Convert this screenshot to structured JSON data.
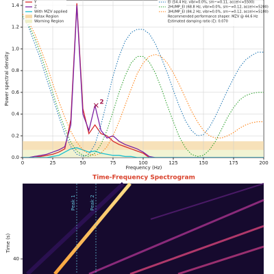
{
  "chart_data": [
    {
      "type": "line",
      "xlabel": "Frequency (Hz)",
      "ylabel": "Power spectral density",
      "x": [
        0,
        5,
        10,
        15,
        20,
        25,
        30,
        35,
        40,
        45,
        50,
        55,
        60,
        65,
        70,
        75,
        80,
        85,
        90,
        95,
        100,
        105,
        110,
        115,
        120,
        125,
        130,
        135,
        140,
        145,
        150,
        155,
        160,
        165,
        170,
        175,
        180,
        185,
        190,
        195,
        200
      ],
      "xlim": [
        0,
        200
      ],
      "xticks": [
        0,
        25,
        50,
        75,
        100,
        125,
        150,
        175,
        200
      ],
      "ylim": [
        0,
        1.45
      ],
      "yticks": [
        {
          "value": 0,
          "label": "0.0"
        },
        0.2,
        0.4,
        0.6,
        0.8,
        {
          "value": 1,
          "label": "1.0"
        },
        1.2,
        1.4
      ],
      "grid": true,
      "regions": [
        {
          "name": "Relax Region",
          "range": [
            0.07,
            0.15
          ],
          "color": "#f5d9a8"
        },
        {
          "name": "Warning Region",
          "range": [
            0,
            0.07
          ],
          "color": "#eef0c8"
        }
      ],
      "series": [
        {
          "name": "Y",
          "color": "#d62728",
          "style": "solid",
          "values": [
            0,
            0,
            0.01,
            0.01,
            0.02,
            0.03,
            0.05,
            0.08,
            0.35,
            1.42,
            0.45,
            0.22,
            0.3,
            0.22,
            0.2,
            0.15,
            0.12,
            0.1,
            0.08,
            0.06,
            0.04,
            0,
            0,
            0,
            0,
            0,
            0,
            0,
            0,
            0,
            0,
            0,
            0,
            0,
            0,
            0,
            0,
            0,
            0,
            0,
            0
          ]
        },
        {
          "name": "Z",
          "color": "#7b1fa2",
          "style": "solid",
          "values": [
            0,
            0,
            0.01,
            0.02,
            0.03,
            0.05,
            0.07,
            0.1,
            0.3,
            1.4,
            0.4,
            0.25,
            0.48,
            0.25,
            0.18,
            0.2,
            0.15,
            0.12,
            0.1,
            0.08,
            0.05,
            0.01,
            0,
            0,
            0,
            0,
            0,
            0,
            0,
            0,
            0,
            0,
            0,
            0,
            0,
            0,
            0,
            0,
            0,
            0,
            0
          ]
        },
        {
          "name": "With MZV applied",
          "color": "#17becf",
          "style": "solid",
          "values": [
            0,
            0,
            0,
            0,
            0,
            0.01,
            0.02,
            0.05,
            0.08,
            0.09,
            0.07,
            0.05,
            0.06,
            0.04,
            0.03,
            0.02,
            0.02,
            0.01,
            0.01,
            0,
            0,
            0,
            0,
            0,
            0,
            0,
            0,
            0,
            0,
            0,
            0,
            0,
            0,
            0,
            0,
            0,
            0,
            0,
            0,
            0,
            0
          ]
        },
        {
          "name": "EI (54.4 Hz, vibr=0.0%, sm~=0.11, accel<=5500)",
          "color": "#1f77b4",
          "style": "dotted",
          "values": [
            1.3,
            1.2,
            1.05,
            0.9,
            0.72,
            0.55,
            0.38,
            0.22,
            0.1,
            0.03,
            0.01,
            0.03,
            0.12,
            0.3,
            0.52,
            0.75,
            0.93,
            1.07,
            1.15,
            1.18,
            1.18,
            1.14,
            1.05,
            0.92,
            0.78,
            0.62,
            0.47,
            0.34,
            0.25,
            0.2,
            0.21,
            0.28,
            0.38,
            0.5,
            0.62,
            0.73,
            0.83,
            0.9,
            0.94,
            0.97,
            0.97
          ]
        },
        {
          "name": "2HUMP_EI (68.8 Hz, vibr=0.0%, sm~=0.12, accel<=5200)",
          "color": "#2ca02c",
          "style": "dotted",
          "values": [
            1.3,
            1.22,
            1.1,
            0.95,
            0.78,
            0.6,
            0.42,
            0.27,
            0.14,
            0.06,
            0.02,
            0.01,
            0.04,
            0.12,
            0.25,
            0.42,
            0.6,
            0.75,
            0.87,
            0.93,
            0.93,
            0.88,
            0.78,
            0.64,
            0.48,
            0.33,
            0.19,
            0.09,
            0.03,
            0.01,
            0.02,
            0.07,
            0.15,
            0.26,
            0.37,
            0.46,
            0.53,
            0.57,
            0.59,
            0.6,
            0.6
          ]
        },
        {
          "name": "3HUMP_EI (84.2 Hz, vibr=0.0%, sm~=0.12, accel<=5100)",
          "color": "#ff7f0e",
          "style": "dotted",
          "values": [
            1.32,
            1.25,
            1.14,
            1.0,
            0.85,
            0.68,
            0.52,
            0.37,
            0.24,
            0.14,
            0.07,
            0.03,
            0.02,
            0.04,
            0.1,
            0.2,
            0.33,
            0.48,
            0.63,
            0.77,
            0.87,
            0.93,
            0.95,
            0.93,
            0.87,
            0.78,
            0.67,
            0.55,
            0.43,
            0.33,
            0.25,
            0.2,
            0.18,
            0.18,
            0.2,
            0.23,
            0.27,
            0.3,
            0.32,
            0.33,
            0.33
          ]
        }
      ],
      "annotations": [
        {
          "text": "2",
          "x": 61,
          "y": 0.48
        }
      ],
      "notes": [
        "Recommended performance shaper: MZV @ 44.6 Hz",
        "Estimated damping ratio (ζ): 0.070"
      ]
    },
    {
      "type": "spectrogram",
      "title": "Time-Frequency Spectrogram",
      "ylabel": "Time (s)",
      "ylim": [
        0,
        48
      ],
      "yticks": [
        40
      ],
      "peaks": [
        "Peak 1",
        "Peak 2"
      ]
    }
  ]
}
